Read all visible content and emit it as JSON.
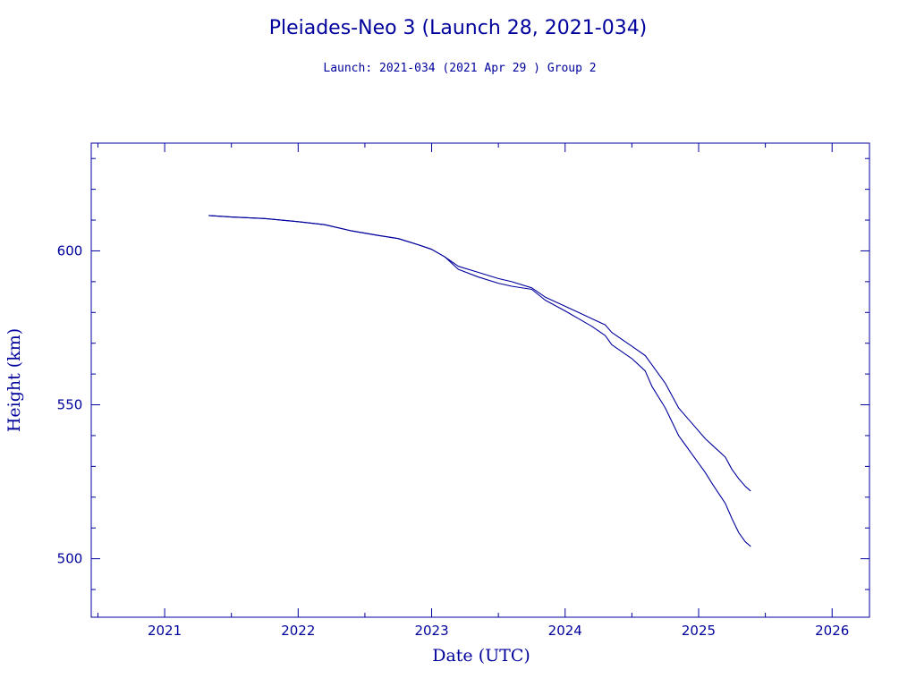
{
  "colors": {
    "ink": "#00009c",
    "background": "#ffffff"
  },
  "chart_data": {
    "type": "line",
    "title": "Pleiades-Neo 3 (Launch 28, 2021-034)",
    "subtitle": "Launch: 2021-034  (2021 Apr 29 )  Group 2",
    "xlabel": "Date (UTC)",
    "ylabel": "Height (km)",
    "xlim": [
      2020.45,
      2026.28
    ],
    "ylim": [
      481,
      635
    ],
    "x_ticks": [
      2021,
      2022,
      2023,
      2024,
      2025,
      2026
    ],
    "y_ticks": [
      500,
      550,
      600
    ],
    "grid": false,
    "series": [
      {
        "x": [
          2021.33,
          2021.5,
          2021.75,
          2022.0,
          2022.2,
          2022.4,
          2022.6,
          2022.75,
          2022.9,
          2023.0,
          2023.1,
          2023.2,
          2023.35,
          2023.5,
          2023.6,
          2023.75,
          2023.85,
          2024.0,
          2024.1,
          2024.2,
          2024.3,
          2024.35,
          2024.5,
          2024.6,
          2024.65,
          2024.75,
          2024.85,
          2024.95,
          2025.05,
          2025.1,
          2025.2,
          2025.25,
          2025.3,
          2025.35,
          2025.39
        ],
        "y": [
          611.5,
          611,
          610.5,
          609.5,
          608.5,
          606.5,
          605,
          604,
          602,
          600.5,
          598,
          595,
          593,
          591,
          590,
          588,
          585,
          582,
          580,
          578,
          576,
          573.5,
          569,
          566,
          563,
          557,
          549,
          544,
          539,
          537,
          533,
          529,
          526,
          523.5,
          522
        ]
      },
      {
        "x": [
          2021.33,
          2021.5,
          2021.75,
          2022.0,
          2022.2,
          2022.4,
          2022.6,
          2022.75,
          2022.9,
          2023.0,
          2023.1,
          2023.2,
          2023.35,
          2023.5,
          2023.6,
          2023.75,
          2023.85,
          2024.0,
          2024.1,
          2024.2,
          2024.3,
          2024.35,
          2024.5,
          2024.6,
          2024.65,
          2024.75,
          2024.85,
          2024.95,
          2025.05,
          2025.1,
          2025.2,
          2025.25,
          2025.3,
          2025.35,
          2025.39
        ],
        "y": [
          611.5,
          611,
          610.5,
          609.5,
          608.5,
          606.5,
          605,
          604,
          602,
          600.5,
          598,
          594,
          591.5,
          589.5,
          588.5,
          587.5,
          584,
          580.5,
          578,
          575.5,
          572.5,
          569.5,
          565,
          561,
          556,
          549,
          540,
          534,
          528,
          524.5,
          518,
          513,
          508.5,
          505.5,
          504
        ]
      }
    ]
  }
}
